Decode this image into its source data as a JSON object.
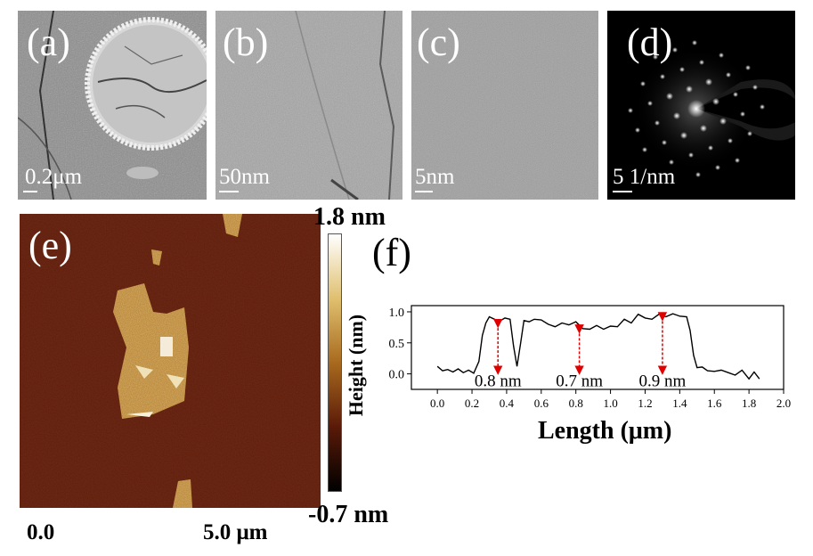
{
  "panels": {
    "a": {
      "label": "(a)",
      "scale": "0.2μm"
    },
    "b": {
      "label": "(b)",
      "scale": "50nm"
    },
    "c": {
      "label": "(c)",
      "scale": "5nm"
    },
    "d": {
      "label": "(d)",
      "scale": "5 1/nm"
    },
    "e": {
      "label": "(e)",
      "x_start": "0.0",
      "x_end": "5.0 μm"
    },
    "f": {
      "label": "(f)"
    }
  },
  "colorbar": {
    "max_label": "1.8 nm",
    "min_label": "-0.7 nm",
    "axis_title": "Height (nm)",
    "colors": [
      "#ffffff",
      "#e0c070",
      "#a86a1e",
      "#5a1a08",
      "#000000"
    ]
  },
  "chart_data": {
    "type": "line",
    "xlabel": "Length (μm)",
    "ylabel": "Height (nm)",
    "xlim": [
      -0.15,
      2.0
    ],
    "ylim": [
      -0.25,
      1.1
    ],
    "xticks": [
      "0.0",
      "0.2",
      "0.4",
      "0.6",
      "0.8",
      "1.0",
      "1.2",
      "1.4",
      "1.6",
      "1.8",
      "2.0"
    ],
    "yticks": [
      "0.0",
      "0.5",
      "1.0"
    ],
    "series": [
      {
        "x": [
          0.0,
          0.03,
          0.06,
          0.09,
          0.12,
          0.15,
          0.18,
          0.21,
          0.24,
          0.26,
          0.28,
          0.3,
          0.33,
          0.36,
          0.39,
          0.42,
          0.44,
          0.46,
          0.48,
          0.5,
          0.53,
          0.56,
          0.6,
          0.64,
          0.68,
          0.72,
          0.76,
          0.8,
          0.84,
          0.88,
          0.92,
          0.96,
          1.0,
          1.04,
          1.08,
          1.12,
          1.16,
          1.2,
          1.24,
          1.28,
          1.32,
          1.36,
          1.4,
          1.44,
          1.46,
          1.48,
          1.5,
          1.53,
          1.56,
          1.6,
          1.64,
          1.68,
          1.72,
          1.76,
          1.8,
          1.83,
          1.86
        ],
        "y": [
          0.12,
          0.05,
          0.07,
          0.03,
          0.08,
          0.02,
          0.06,
          0.01,
          0.2,
          0.62,
          0.82,
          0.92,
          0.88,
          0.85,
          0.9,
          0.88,
          0.45,
          0.12,
          0.48,
          0.86,
          0.84,
          0.88,
          0.87,
          0.8,
          0.76,
          0.82,
          0.79,
          0.84,
          0.73,
          0.72,
          0.78,
          0.72,
          0.77,
          0.76,
          0.88,
          0.82,
          0.96,
          0.9,
          0.88,
          0.96,
          0.92,
          0.97,
          0.93,
          0.92,
          0.7,
          0.3,
          0.1,
          0.11,
          0.05,
          0.04,
          0.06,
          0.02,
          -0.02,
          0.06,
          -0.08,
          0.03,
          -0.08
        ]
      }
    ],
    "annotations": [
      {
        "text": "0.8 nm",
        "x": 0.35,
        "y_top": 0.84,
        "y_bottom": 0.0
      },
      {
        "text": "0.7 nm",
        "x": 0.82,
        "y_top": 0.75,
        "y_bottom": 0.0
      },
      {
        "text": "0.9 nm",
        "x": 1.3,
        "y_top": 0.95,
        "y_bottom": 0.0
      }
    ],
    "arrow_color": "#e00000"
  }
}
